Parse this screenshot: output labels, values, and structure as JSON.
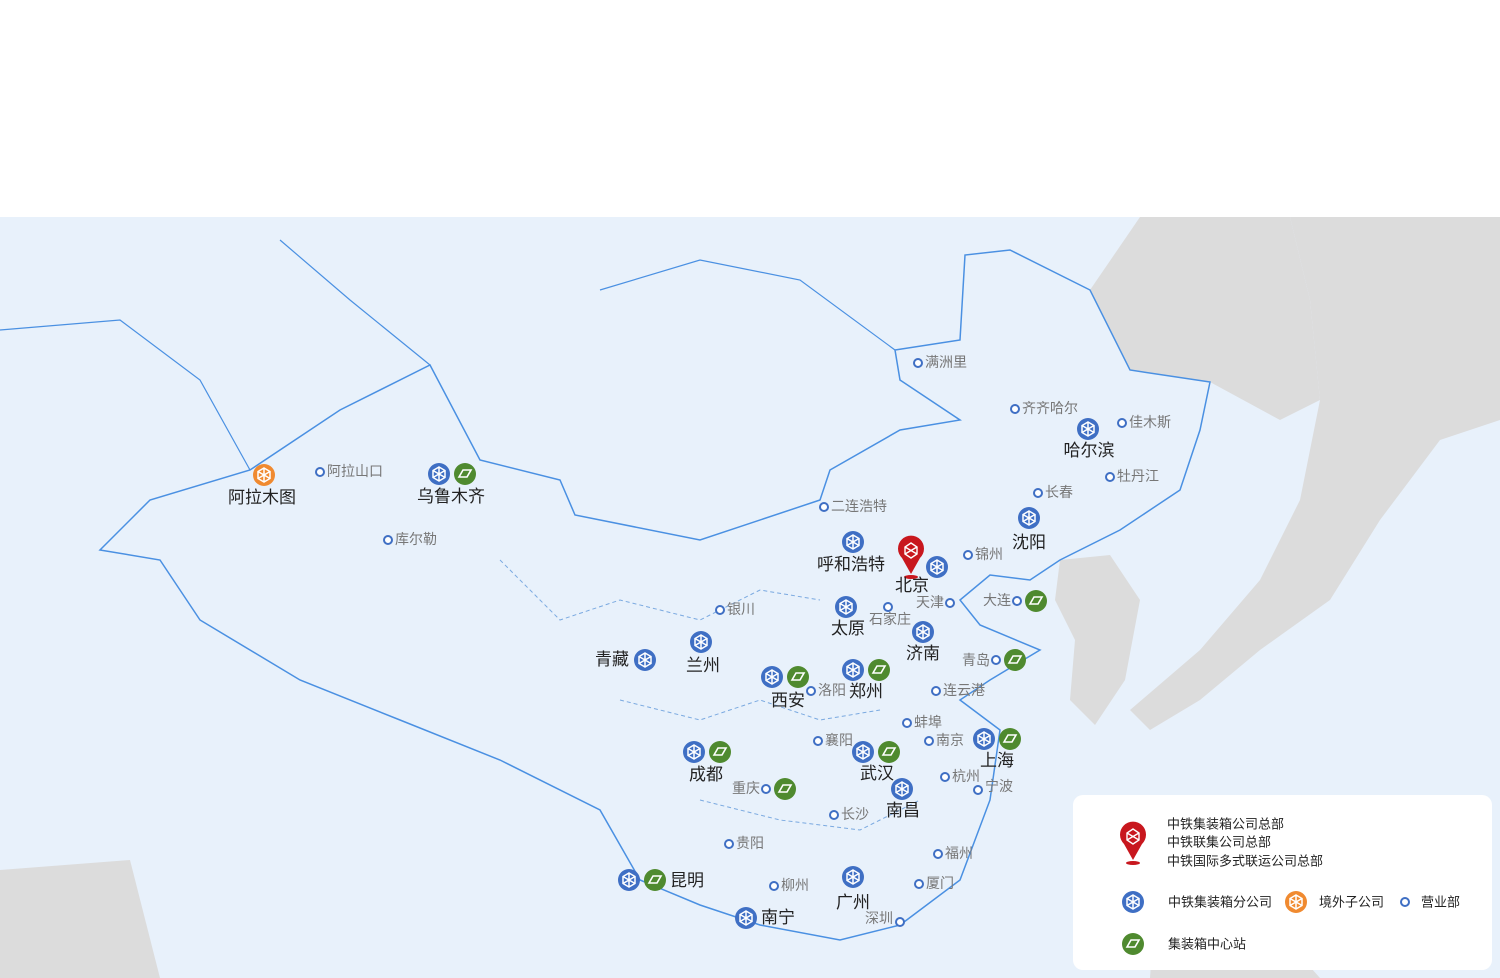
{
  "map": {
    "overseas": [
      "阿拉木图"
    ],
    "branches": [
      "乌鲁木齐",
      "哈尔滨",
      "沈阳",
      "呼和浩特",
      "北京",
      "太原",
      "济南",
      "青藏",
      "兰州",
      "西安",
      "郑州",
      "成都",
      "武汉",
      "上海",
      "南昌",
      "昆明",
      "南宁",
      "广州"
    ],
    "offices": [
      "满洲里",
      "阿拉山口",
      "库尔勒",
      "二连浩特",
      "齐齐哈尔",
      "佳木斯",
      "牡丹江",
      "长春",
      "锦州",
      "天津",
      "石家庄",
      "银川",
      "洛阳",
      "连云港",
      "蚌埠",
      "襄阳",
      "南京",
      "杭州",
      "宁波",
      "长沙",
      "贵阳",
      "福州",
      "柳州",
      "厦门",
      "深圳",
      "大连",
      "青岛",
      "重庆"
    ]
  },
  "legend": {
    "headquarters": [
      "中铁集装箱公司总部",
      "中铁联集公司总部",
      "中铁国际多式联运公司总部"
    ],
    "branch": "中铁集装箱分公司",
    "overseas": "境外子公司",
    "office": "营业部",
    "station": "集装箱中心站"
  }
}
